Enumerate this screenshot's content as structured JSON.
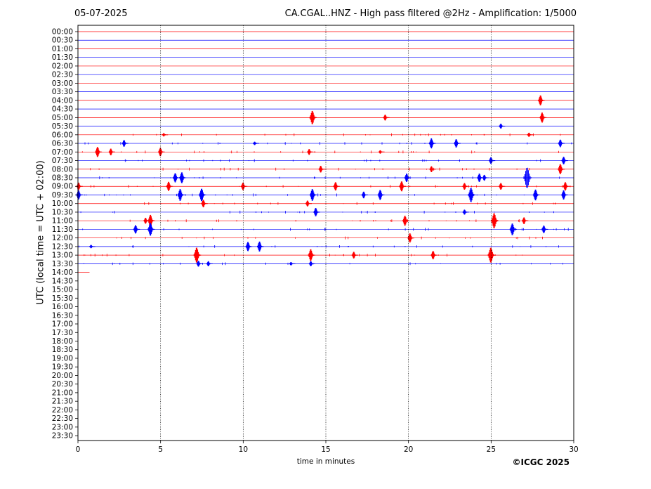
{
  "header": {
    "date": "05-07-2025",
    "title": "CA.CGAL..HNZ - High pass filtered @2Hz - Amplification: 1/5000"
  },
  "footer": {
    "copyright": "©ICGC 2025"
  },
  "chart_data": {
    "type": "line",
    "title": "CA.CGAL..HNZ - High pass filtered @2Hz - Amplification: 1/5000",
    "xlabel": "time in minutes",
    "ylabel": "UTC (local time = UTC + 02:00)",
    "xlim": [
      0,
      30
    ],
    "x_ticks": [
      0,
      5,
      10,
      15,
      20,
      25,
      30
    ],
    "x_tick_labels": [
      "0",
      "5",
      "10",
      "15",
      "20",
      "25",
      "30"
    ],
    "vertical_gridlines_at": [
      5,
      10,
      15,
      20,
      25
    ],
    "row_labels": [
      "00:00",
      "00:30",
      "01:00",
      "01:30",
      "02:00",
      "02:30",
      "03:00",
      "03:30",
      "04:00",
      "04:30",
      "05:00",
      "05:30",
      "06:00",
      "06:30",
      "07:00",
      "07:30",
      "08:00",
      "08:30",
      "09:00",
      "09:30",
      "10:00",
      "10:30",
      "11:00",
      "11:30",
      "12:00",
      "12:30",
      "13:00",
      "13:30",
      "14:00",
      "14:30",
      "15:00",
      "15:30",
      "16:00",
      "16:30",
      "17:00",
      "17:30",
      "18:00",
      "18:30",
      "19:00",
      "19:30",
      "20:00",
      "20:30",
      "21:00",
      "21:30",
      "22:00",
      "22:30",
      "23:00",
      "23:30"
    ],
    "colors": {
      "hour_trace": "#ff0000",
      "half_hour_trace": "#0000ff"
    },
    "last_row_end_minute": 0.7,
    "events": [
      {
        "row": "04:00",
        "minute": 28.0,
        "amplitude": 0.6
      },
      {
        "row": "05:00",
        "minute": 14.2,
        "amplitude": 0.8
      },
      {
        "row": "05:00",
        "minute": 18.6,
        "amplitude": 0.35
      },
      {
        "row": "05:00",
        "minute": 28.1,
        "amplitude": 0.6
      },
      {
        "row": "05:30",
        "minute": 25.6,
        "amplitude": 0.3
      },
      {
        "row": "06:00",
        "minute": 5.2,
        "amplitude": 0.2
      },
      {
        "row": "06:00",
        "minute": 27.3,
        "amplitude": 0.25
      },
      {
        "row": "06:30",
        "minute": 2.8,
        "amplitude": 0.4
      },
      {
        "row": "06:30",
        "minute": 10.7,
        "amplitude": 0.2
      },
      {
        "row": "06:30",
        "minute": 21.4,
        "amplitude": 0.6
      },
      {
        "row": "06:30",
        "minute": 22.9,
        "amplitude": 0.5
      },
      {
        "row": "06:30",
        "minute": 29.2,
        "amplitude": 0.45
      },
      {
        "row": "07:00",
        "minute": 1.2,
        "amplitude": 0.6
      },
      {
        "row": "07:00",
        "minute": 2.0,
        "amplitude": 0.4
      },
      {
        "row": "07:00",
        "minute": 5.0,
        "amplitude": 0.5
      },
      {
        "row": "07:00",
        "minute": 14.0,
        "amplitude": 0.35
      },
      {
        "row": "07:00",
        "minute": 18.3,
        "amplitude": 0.2
      },
      {
        "row": "07:30",
        "minute": 25.0,
        "amplitude": 0.4
      },
      {
        "row": "07:30",
        "minute": 29.4,
        "amplitude": 0.45
      },
      {
        "row": "08:00",
        "minute": 14.7,
        "amplitude": 0.4
      },
      {
        "row": "08:00",
        "minute": 21.4,
        "amplitude": 0.35
      },
      {
        "row": "08:00",
        "minute": 29.2,
        "amplitude": 0.6
      },
      {
        "row": "08:30",
        "minute": 5.9,
        "amplitude": 0.55
      },
      {
        "row": "08:30",
        "minute": 6.3,
        "amplitude": 0.65
      },
      {
        "row": "08:30",
        "minute": 19.9,
        "amplitude": 0.5
      },
      {
        "row": "08:30",
        "minute": 24.3,
        "amplitude": 0.5
      },
      {
        "row": "08:30",
        "minute": 24.6,
        "amplitude": 0.35
      },
      {
        "row": "08:30",
        "minute": 27.2,
        "amplitude": 1.2
      },
      {
        "row": "09:00",
        "minute": 0.05,
        "amplitude": 0.45
      },
      {
        "row": "09:00",
        "minute": 5.5,
        "amplitude": 0.55
      },
      {
        "row": "09:00",
        "minute": 10.0,
        "amplitude": 0.45
      },
      {
        "row": "09:00",
        "minute": 15.6,
        "amplitude": 0.5
      },
      {
        "row": "09:00",
        "minute": 19.6,
        "amplitude": 0.6
      },
      {
        "row": "09:00",
        "minute": 23.4,
        "amplitude": 0.4
      },
      {
        "row": "09:00",
        "minute": 25.6,
        "amplitude": 0.4
      },
      {
        "row": "09:00",
        "minute": 29.5,
        "amplitude": 0.5
      },
      {
        "row": "09:30",
        "minute": 0.05,
        "amplitude": 0.55
      },
      {
        "row": "09:30",
        "minute": 6.2,
        "amplitude": 0.7
      },
      {
        "row": "09:30",
        "minute": 7.5,
        "amplitude": 0.75
      },
      {
        "row": "09:30",
        "minute": 14.2,
        "amplitude": 0.7
      },
      {
        "row": "09:30",
        "minute": 17.3,
        "amplitude": 0.4
      },
      {
        "row": "09:30",
        "minute": 18.3,
        "amplitude": 0.6
      },
      {
        "row": "09:30",
        "minute": 23.8,
        "amplitude": 0.85
      },
      {
        "row": "09:30",
        "minute": 27.7,
        "amplitude": 0.65
      },
      {
        "row": "09:30",
        "minute": 29.4,
        "amplitude": 0.55
      },
      {
        "row": "10:00",
        "minute": 7.6,
        "amplitude": 0.45
      },
      {
        "row": "10:00",
        "minute": 13.9,
        "amplitude": 0.35
      },
      {
        "row": "10:30",
        "minute": 14.4,
        "amplitude": 0.5
      },
      {
        "row": "10:30",
        "minute": 23.4,
        "amplitude": 0.3
      },
      {
        "row": "11:00",
        "minute": 4.1,
        "amplitude": 0.35
      },
      {
        "row": "11:00",
        "minute": 4.4,
        "amplitude": 0.7
      },
      {
        "row": "11:00",
        "minute": 19.8,
        "amplitude": 0.6
      },
      {
        "row": "11:00",
        "minute": 25.2,
        "amplitude": 0.9
      },
      {
        "row": "11:00",
        "minute": 27.0,
        "amplitude": 0.4
      },
      {
        "row": "11:30",
        "minute": 3.5,
        "amplitude": 0.5
      },
      {
        "row": "11:30",
        "minute": 4.4,
        "amplitude": 0.75
      },
      {
        "row": "11:30",
        "minute": 26.3,
        "amplitude": 0.7
      },
      {
        "row": "11:30",
        "minute": 28.2,
        "amplitude": 0.45
      },
      {
        "row": "12:00",
        "minute": 20.1,
        "amplitude": 0.55
      },
      {
        "row": "12:30",
        "minute": 0.8,
        "amplitude": 0.2
      },
      {
        "row": "12:30",
        "minute": 10.3,
        "amplitude": 0.55
      },
      {
        "row": "12:30",
        "minute": 11.0,
        "amplitude": 0.6
      },
      {
        "row": "13:00",
        "minute": 7.2,
        "amplitude": 0.9
      },
      {
        "row": "13:00",
        "minute": 14.1,
        "amplitude": 0.7
      },
      {
        "row": "13:00",
        "minute": 16.7,
        "amplitude": 0.4
      },
      {
        "row": "13:00",
        "minute": 21.5,
        "amplitude": 0.5
      },
      {
        "row": "13:00",
        "minute": 25.0,
        "amplitude": 0.9
      },
      {
        "row": "13:30",
        "minute": 7.3,
        "amplitude": 0.35
      },
      {
        "row": "13:30",
        "minute": 7.9,
        "amplitude": 0.3
      },
      {
        "row": "13:30",
        "minute": 12.9,
        "amplitude": 0.2
      },
      {
        "row": "13:30",
        "minute": 14.1,
        "amplitude": 0.3
      }
    ]
  }
}
